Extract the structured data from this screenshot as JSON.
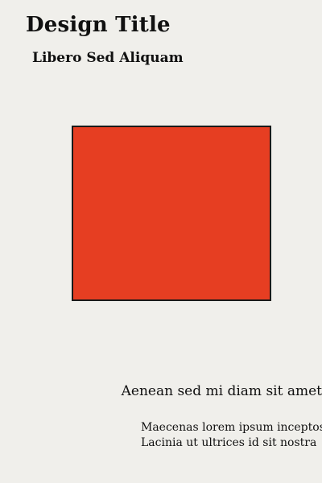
{
  "header": {
    "title": "Design Title",
    "subtitle": "Libero Sed Aliquam"
  },
  "graphic": {
    "fill_color": "#e63e22",
    "border_color": "#1a1a1a"
  },
  "footer": {
    "tagline": "Aenean sed mi diam sit amet",
    "lines": [
      "Maecenas lorem ipsum inceptos",
      "Lacinia ut ultrices id sit nostra"
    ]
  }
}
